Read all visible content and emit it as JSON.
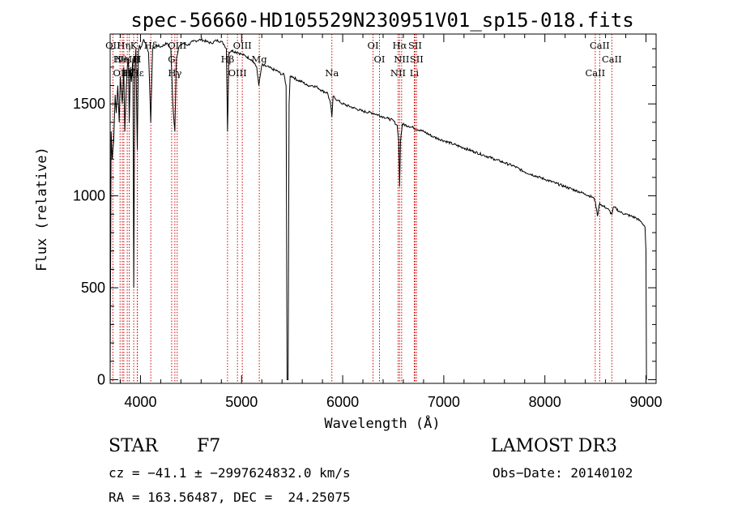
{
  "chart_data": {
    "type": "line",
    "title": "spec-56660-HD105529N230951V01_sp15-018.fits",
    "xlabel": "Wavelength (Å)",
    "ylabel": "Flux (relative)",
    "xlim": [
      3700,
      9100
    ],
    "ylim": [
      -20,
      1880
    ],
    "xticks": [
      4000,
      5000,
      6000,
      7000,
      8000,
      9000
    ],
    "yticks": [
      0,
      500,
      1000,
      1500
    ],
    "grid": false,
    "series": [
      {
        "name": "flux",
        "x": [
          3700,
          3710,
          3720,
          3735,
          3750,
          3760,
          3775,
          3790,
          3800,
          3820,
          3835,
          3845,
          3860,
          3870,
          3880,
          3889,
          3900,
          3910,
          3925,
          3933,
          3945,
          3955,
          3968,
          3980,
          3990,
          4000,
          4030,
          4060,
          4080,
          4101,
          4120,
          4160,
          4200,
          4260,
          4300,
          4320,
          4340,
          4355,
          4380,
          4420,
          4470,
          4520,
          4600,
          4650,
          4700,
          4750,
          4800,
          4830,
          4850,
          4861,
          4875,
          4900,
          4960,
          5000,
          5040,
          5100,
          5150,
          5170,
          5183,
          5200,
          5270,
          5300,
          5350,
          5400,
          5420,
          5440,
          5450,
          5460,
          5470,
          5480,
          5500,
          5550,
          5600,
          5650,
          5700,
          5750,
          5800,
          5850,
          5880,
          5893,
          5905,
          5950,
          6000,
          6100,
          6200,
          6300,
          6400,
          6450,
          6500,
          6540,
          6555,
          6563,
          6572,
          6590,
          6650,
          6700,
          6800,
          6900,
          7000,
          7100,
          7200,
          7300,
          7400,
          7500,
          7600,
          7700,
          7800,
          7900,
          8000,
          8100,
          8200,
          8300,
          8400,
          8480,
          8498,
          8520,
          8542,
          8560,
          8620,
          8662,
          8680,
          8750,
          8800,
          8850,
          8900,
          8950,
          8980,
          8990,
          9000,
          9005
        ],
        "y": [
          0,
          1350,
          1200,
          1300,
          1550,
          1450,
          1600,
          1400,
          1650,
          1500,
          1700,
          1350,
          1600,
          1700,
          1750,
          1400,
          1700,
          1620,
          1750,
          500,
          1700,
          1800,
          1250,
          1780,
          1820,
          1800,
          1850,
          1820,
          1780,
          1400,
          1800,
          1820,
          1810,
          1830,
          1800,
          1500,
          1350,
          1750,
          1810,
          1830,
          1820,
          1840,
          1850,
          1840,
          1830,
          1845,
          1840,
          1820,
          1800,
          1350,
          1780,
          1790,
          1780,
          1770,
          1760,
          1740,
          1700,
          1600,
          1650,
          1710,
          1700,
          1690,
          1680,
          1660,
          1660,
          1600,
          0,
          0,
          1500,
          1650,
          1650,
          1630,
          1620,
          1600,
          1600,
          1590,
          1570,
          1560,
          1500,
          1430,
          1540,
          1520,
          1500,
          1480,
          1460,
          1450,
          1430,
          1420,
          1410,
          1380,
          1300,
          1050,
          1300,
          1390,
          1380,
          1370,
          1350,
          1320,
          1300,
          1280,
          1260,
          1240,
          1220,
          1200,
          1180,
          1160,
          1130,
          1110,
          1090,
          1070,
          1050,
          1030,
          1010,
          990,
          970,
          890,
          960,
          950,
          930,
          900,
          940,
          910,
          900,
          890,
          880,
          860,
          840,
          830,
          700,
          0
        ]
      }
    ],
    "lines": [
      {
        "wl": 3727,
        "label": "OII"
      },
      {
        "wl": 3798,
        "label": "Hθ"
      },
      {
        "wl": 3820,
        "label": "OIII"
      },
      {
        "wl": 3835,
        "label": "Hη"
      },
      {
        "wl": 3869,
        "label": "NeIII"
      },
      {
        "wl": 3889,
        "label": "Hζ"
      },
      {
        "wl": 3933,
        "label": "K"
      },
      {
        "wl": 3968,
        "label": "H"
      },
      {
        "wl": 3970,
        "label": "Hε"
      },
      {
        "wl": 4102,
        "label": "Hδ"
      },
      {
        "wl": 4308,
        "label": "G"
      },
      {
        "wl": 4340,
        "label": "Hγ"
      },
      {
        "wl": 4363,
        "label": "OIII"
      },
      {
        "wl": 4861,
        "label": "Hβ"
      },
      {
        "wl": 4959,
        "label": "OIII"
      },
      {
        "wl": 5007,
        "label": "OIII"
      },
      {
        "wl": 5175,
        "label": "Mg"
      },
      {
        "wl": 5893,
        "label": "Na"
      },
      {
        "wl": 6300,
        "label": "OI"
      },
      {
        "wl": 6364,
        "label": "OI"
      },
      {
        "wl": 6548,
        "label": "NII"
      },
      {
        "wl": 6563,
        "label": "Hα"
      },
      {
        "wl": 6583,
        "label": "NII"
      },
      {
        "wl": 6708,
        "label": "Li"
      },
      {
        "wl": 6716,
        "label": "SII"
      },
      {
        "wl": 6731,
        "label": "SII"
      },
      {
        "wl": 8498,
        "label": "CaII"
      },
      {
        "wl": 8542,
        "label": "CaII"
      },
      {
        "wl": 8662,
        "label": "CaII"
      }
    ]
  },
  "info": {
    "object_class": "STAR",
    "subclass": "F7",
    "survey": "LAMOST DR3",
    "cz": "cz = −41.1 ± −2997624832.0 km/s",
    "obs_date": "Obs−Date: 20140102",
    "coords": "RA = 163.56487, DEC =  24.25075"
  },
  "colors": {
    "spectrum": "#000000",
    "line_marker": "#cc0000",
    "axis": "#000000",
    "background": "#ffffff"
  }
}
